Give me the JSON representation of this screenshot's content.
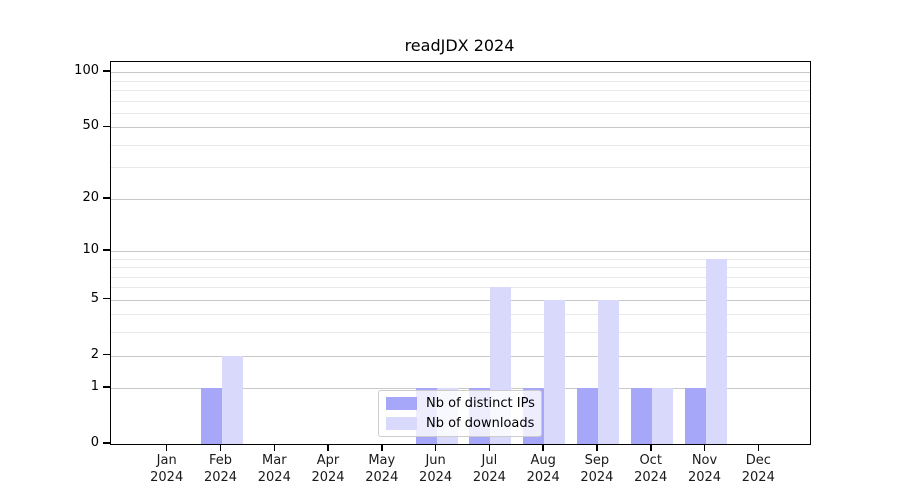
{
  "chart_data": {
    "type": "bar",
    "title": "readJDX 2024",
    "x_months": [
      "Jan",
      "Feb",
      "Mar",
      "Apr",
      "May",
      "Jun",
      "Jul",
      "Aug",
      "Sep",
      "Oct",
      "Nov",
      "Dec"
    ],
    "x_year": "2024",
    "categories": [
      "Jan 2024",
      "Feb 2024",
      "Mar 2024",
      "Apr 2024",
      "May 2024",
      "Jun 2024",
      "Jul 2024",
      "Aug 2024",
      "Sep 2024",
      "Oct 2024",
      "Nov 2024",
      "Dec 2024"
    ],
    "series": [
      {
        "name": "Nb of distinct IPs",
        "color": "#a7a7fa",
        "values": [
          0,
          1,
          0,
          0,
          0,
          1,
          1,
          1,
          1,
          1,
          1,
          0
        ]
      },
      {
        "name": "Nb of downloads",
        "color": "#d9d9fc",
        "values": [
          0,
          2,
          0,
          0,
          0,
          1,
          6,
          5,
          5,
          1,
          9,
          0
        ]
      }
    ],
    "xlabel": "",
    "ylabel": "",
    "y_scale": "log1p",
    "ylim": [
      0,
      113
    ],
    "y_ticks": [
      0,
      1,
      2,
      5,
      10,
      20,
      50,
      100
    ],
    "y_tick_labels": [
      "0",
      "1",
      "2",
      "5",
      "10",
      "20",
      "50",
      "100"
    ],
    "y_minor_ticks": [
      3,
      4,
      6,
      7,
      8,
      9,
      30,
      40,
      60,
      70,
      80,
      90
    ],
    "grid": true,
    "legend_position": "lower center"
  },
  "colors": {
    "bar_distinct_ips": "#a7a7fa",
    "bar_downloads": "#d9d9fc",
    "grid_major": "#c9c9c9",
    "grid_minor": "#e9e9e9",
    "axis": "#000000"
  }
}
